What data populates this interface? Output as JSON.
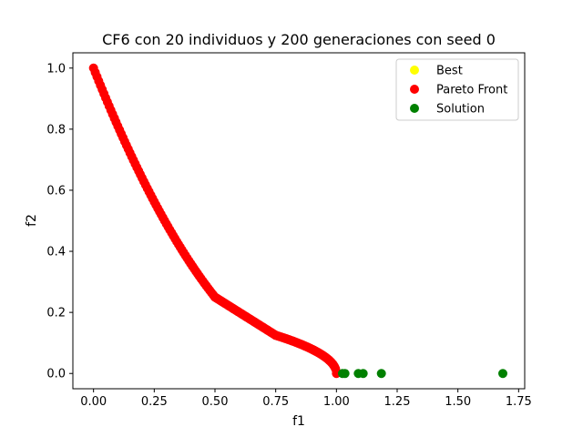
{
  "chart_data": {
    "type": "scatter",
    "title": "CF6 con 20 individuos y 200 generaciones con seed 0",
    "xlabel": "f1",
    "ylabel": "f2",
    "xlim": [
      -0.085,
      1.775
    ],
    "ylim": [
      -0.05,
      1.05
    ],
    "xticks": [
      0.0,
      0.25,
      0.5,
      0.75,
      1.0,
      1.25,
      1.5,
      1.75
    ],
    "xtick_labels": [
      "0.00",
      "0.25",
      "0.50",
      "0.75",
      "1.00",
      "1.25",
      "1.50",
      "1.75"
    ],
    "yticks": [
      0.0,
      0.2,
      0.4,
      0.6,
      0.8,
      1.0
    ],
    "ytick_labels": [
      "0.0",
      "0.2",
      "0.4",
      "0.6",
      "0.8",
      "1.0"
    ],
    "grid": false,
    "legend_position": "top-right",
    "series": [
      {
        "name": "Best",
        "color": "#ffff00",
        "points": []
      },
      {
        "name": "Pareto Front",
        "color": "#ff0000",
        "curve": [
          {
            "x_range": [
              0.0,
              0.5
            ],
            "formula": "(1-x)^2",
            "description": "f2 = (1 - f1)^2"
          },
          {
            "x_range": [
              0.5,
              0.75
            ],
            "formula": "0.5*(1-x)",
            "description": "f2 = 0.5 * (1 - f1)"
          },
          {
            "x_range": [
              0.75,
              1.0
            ],
            "formula": "0.25*sqrt(1-x)",
            "description": "f2 = 0.25 * sqrt(1 - f1)"
          }
        ]
      },
      {
        "name": "Solution",
        "color": "#008000",
        "points": [
          {
            "x": 1.025,
            "y": 0.0
          },
          {
            "x": 1.035,
            "y": 0.0
          },
          {
            "x": 1.09,
            "y": 0.0
          },
          {
            "x": 1.11,
            "y": 0.0
          },
          {
            "x": 1.185,
            "y": 0.0
          },
          {
            "x": 1.685,
            "y": 0.0
          }
        ]
      }
    ]
  }
}
